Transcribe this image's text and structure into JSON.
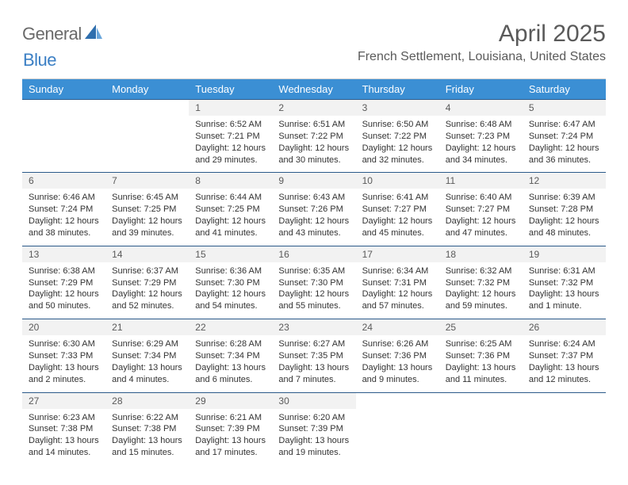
{
  "logo": {
    "part1": "General",
    "part2": "Blue",
    "icon_color": "#2f6fae"
  },
  "title": {
    "month": "April 2025",
    "location": "French Settlement, Louisiana, United States"
  },
  "colors": {
    "header_bg": "#3b8fd4",
    "header_text": "#ffffff",
    "daynum_bg": "#f2f2f2",
    "daynum_border": "#2b5a8a",
    "text": "#333333",
    "muted": "#5a5a5a"
  },
  "weekdays": [
    "Sunday",
    "Monday",
    "Tuesday",
    "Wednesday",
    "Thursday",
    "Friday",
    "Saturday"
  ],
  "weeks": [
    [
      null,
      null,
      {
        "num": "1",
        "sunrise": "Sunrise: 6:52 AM",
        "sunset": "Sunset: 7:21 PM",
        "daylight": "Daylight: 12 hours and 29 minutes."
      },
      {
        "num": "2",
        "sunrise": "Sunrise: 6:51 AM",
        "sunset": "Sunset: 7:22 PM",
        "daylight": "Daylight: 12 hours and 30 minutes."
      },
      {
        "num": "3",
        "sunrise": "Sunrise: 6:50 AM",
        "sunset": "Sunset: 7:22 PM",
        "daylight": "Daylight: 12 hours and 32 minutes."
      },
      {
        "num": "4",
        "sunrise": "Sunrise: 6:48 AM",
        "sunset": "Sunset: 7:23 PM",
        "daylight": "Daylight: 12 hours and 34 minutes."
      },
      {
        "num": "5",
        "sunrise": "Sunrise: 6:47 AM",
        "sunset": "Sunset: 7:24 PM",
        "daylight": "Daylight: 12 hours and 36 minutes."
      }
    ],
    [
      {
        "num": "6",
        "sunrise": "Sunrise: 6:46 AM",
        "sunset": "Sunset: 7:24 PM",
        "daylight": "Daylight: 12 hours and 38 minutes."
      },
      {
        "num": "7",
        "sunrise": "Sunrise: 6:45 AM",
        "sunset": "Sunset: 7:25 PM",
        "daylight": "Daylight: 12 hours and 39 minutes."
      },
      {
        "num": "8",
        "sunrise": "Sunrise: 6:44 AM",
        "sunset": "Sunset: 7:25 PM",
        "daylight": "Daylight: 12 hours and 41 minutes."
      },
      {
        "num": "9",
        "sunrise": "Sunrise: 6:43 AM",
        "sunset": "Sunset: 7:26 PM",
        "daylight": "Daylight: 12 hours and 43 minutes."
      },
      {
        "num": "10",
        "sunrise": "Sunrise: 6:41 AM",
        "sunset": "Sunset: 7:27 PM",
        "daylight": "Daylight: 12 hours and 45 minutes."
      },
      {
        "num": "11",
        "sunrise": "Sunrise: 6:40 AM",
        "sunset": "Sunset: 7:27 PM",
        "daylight": "Daylight: 12 hours and 47 minutes."
      },
      {
        "num": "12",
        "sunrise": "Sunrise: 6:39 AM",
        "sunset": "Sunset: 7:28 PM",
        "daylight": "Daylight: 12 hours and 48 minutes."
      }
    ],
    [
      {
        "num": "13",
        "sunrise": "Sunrise: 6:38 AM",
        "sunset": "Sunset: 7:29 PM",
        "daylight": "Daylight: 12 hours and 50 minutes."
      },
      {
        "num": "14",
        "sunrise": "Sunrise: 6:37 AM",
        "sunset": "Sunset: 7:29 PM",
        "daylight": "Daylight: 12 hours and 52 minutes."
      },
      {
        "num": "15",
        "sunrise": "Sunrise: 6:36 AM",
        "sunset": "Sunset: 7:30 PM",
        "daylight": "Daylight: 12 hours and 54 minutes."
      },
      {
        "num": "16",
        "sunrise": "Sunrise: 6:35 AM",
        "sunset": "Sunset: 7:30 PM",
        "daylight": "Daylight: 12 hours and 55 minutes."
      },
      {
        "num": "17",
        "sunrise": "Sunrise: 6:34 AM",
        "sunset": "Sunset: 7:31 PM",
        "daylight": "Daylight: 12 hours and 57 minutes."
      },
      {
        "num": "18",
        "sunrise": "Sunrise: 6:32 AM",
        "sunset": "Sunset: 7:32 PM",
        "daylight": "Daylight: 12 hours and 59 minutes."
      },
      {
        "num": "19",
        "sunrise": "Sunrise: 6:31 AM",
        "sunset": "Sunset: 7:32 PM",
        "daylight": "Daylight: 13 hours and 1 minute."
      }
    ],
    [
      {
        "num": "20",
        "sunrise": "Sunrise: 6:30 AM",
        "sunset": "Sunset: 7:33 PM",
        "daylight": "Daylight: 13 hours and 2 minutes."
      },
      {
        "num": "21",
        "sunrise": "Sunrise: 6:29 AM",
        "sunset": "Sunset: 7:34 PM",
        "daylight": "Daylight: 13 hours and 4 minutes."
      },
      {
        "num": "22",
        "sunrise": "Sunrise: 6:28 AM",
        "sunset": "Sunset: 7:34 PM",
        "daylight": "Daylight: 13 hours and 6 minutes."
      },
      {
        "num": "23",
        "sunrise": "Sunrise: 6:27 AM",
        "sunset": "Sunset: 7:35 PM",
        "daylight": "Daylight: 13 hours and 7 minutes."
      },
      {
        "num": "24",
        "sunrise": "Sunrise: 6:26 AM",
        "sunset": "Sunset: 7:36 PM",
        "daylight": "Daylight: 13 hours and 9 minutes."
      },
      {
        "num": "25",
        "sunrise": "Sunrise: 6:25 AM",
        "sunset": "Sunset: 7:36 PM",
        "daylight": "Daylight: 13 hours and 11 minutes."
      },
      {
        "num": "26",
        "sunrise": "Sunrise: 6:24 AM",
        "sunset": "Sunset: 7:37 PM",
        "daylight": "Daylight: 13 hours and 12 minutes."
      }
    ],
    [
      {
        "num": "27",
        "sunrise": "Sunrise: 6:23 AM",
        "sunset": "Sunset: 7:38 PM",
        "daylight": "Daylight: 13 hours and 14 minutes."
      },
      {
        "num": "28",
        "sunrise": "Sunrise: 6:22 AM",
        "sunset": "Sunset: 7:38 PM",
        "daylight": "Daylight: 13 hours and 15 minutes."
      },
      {
        "num": "29",
        "sunrise": "Sunrise: 6:21 AM",
        "sunset": "Sunset: 7:39 PM",
        "daylight": "Daylight: 13 hours and 17 minutes."
      },
      {
        "num": "30",
        "sunrise": "Sunrise: 6:20 AM",
        "sunset": "Sunset: 7:39 PM",
        "daylight": "Daylight: 13 hours and 19 minutes."
      },
      null,
      null,
      null
    ]
  ]
}
